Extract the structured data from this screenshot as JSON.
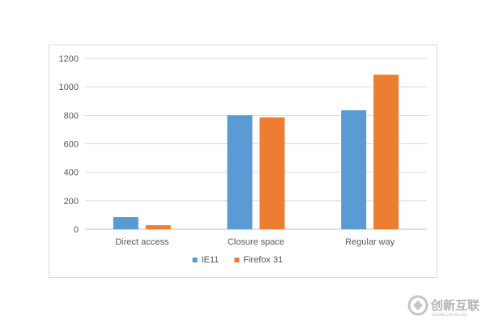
{
  "chart_data": {
    "type": "bar",
    "categories": [
      "Direct access",
      "Closure space",
      "Regular way"
    ],
    "series": [
      {
        "name": "IE11",
        "values": [
          85,
          800,
          835
        ],
        "color": "#5b9bd5"
      },
      {
        "name": "Firefox 31",
        "values": [
          28,
          785,
          1085
        ],
        "color": "#ed7d31"
      }
    ],
    "title": "",
    "xlabel": "",
    "ylabel": "",
    "ylim": [
      0,
      1200
    ],
    "yticks": [
      0,
      200,
      400,
      600,
      800,
      1000,
      1200
    ],
    "grid": true,
    "legend_position": "bottom"
  },
  "watermark": {
    "text": "创新互联",
    "subtext": "CHUANG XIN HU LIAN",
    "icon": "swirl-logo-icon"
  }
}
